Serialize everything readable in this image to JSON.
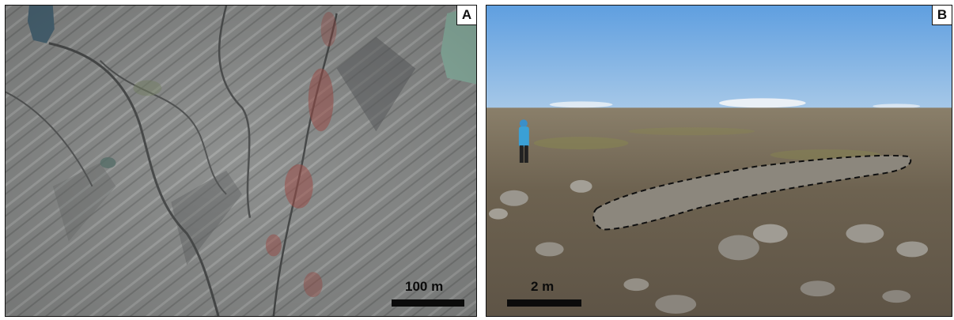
{
  "figure": {
    "panels": [
      {
        "letter": "A",
        "scale_label": "100 m",
        "view": "aerial"
      },
      {
        "letter": "B",
        "scale_label": "2 m",
        "view": "ground"
      }
    ],
    "colors": {
      "outline": "#111111",
      "aerial_ground": "#8f9190",
      "sky": "#6aa6e0",
      "ground": "#6d6250",
      "lake": "#8fb5a6",
      "vegetation_red": "#a3504a"
    }
  }
}
